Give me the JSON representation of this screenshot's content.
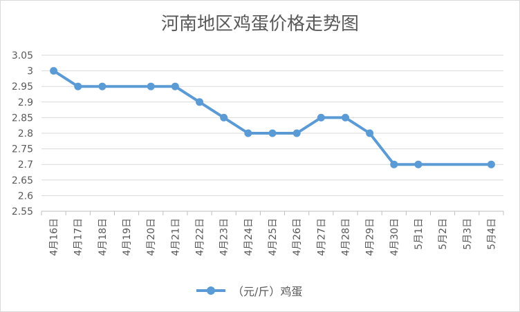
{
  "chart_data": {
    "type": "line",
    "title": "河南地区鸡蛋价格走势图",
    "categories": [
      "4月16日",
      "4月17日",
      "4月18日",
      "4月19日",
      "4月20日",
      "4月21日",
      "4月22日",
      "4月23日",
      "4月24日",
      "4月25日",
      "4月26日",
      "4月27日",
      "4月28日",
      "4月29日",
      "4月30日",
      "5月1日",
      "5月2日",
      "5月3日",
      "5月4日"
    ],
    "series": [
      {
        "name": "（元/斤）鸡蛋",
        "color": "#5b9bd5",
        "values": [
          3.0,
          2.95,
          2.95,
          null,
          2.95,
          2.95,
          2.9,
          2.85,
          2.8,
          2.8,
          2.8,
          2.85,
          2.85,
          2.8,
          2.7,
          2.7,
          null,
          null,
          2.7
        ]
      }
    ],
    "yticks": [
      "2.55",
      "2.6",
      "2.65",
      "2.7",
      "2.75",
      "2.8",
      "2.85",
      "2.9",
      "2.95",
      "3",
      "3.05"
    ],
    "ylim": [
      2.55,
      3.05
    ],
    "grid": true,
    "legend": "bottom"
  }
}
